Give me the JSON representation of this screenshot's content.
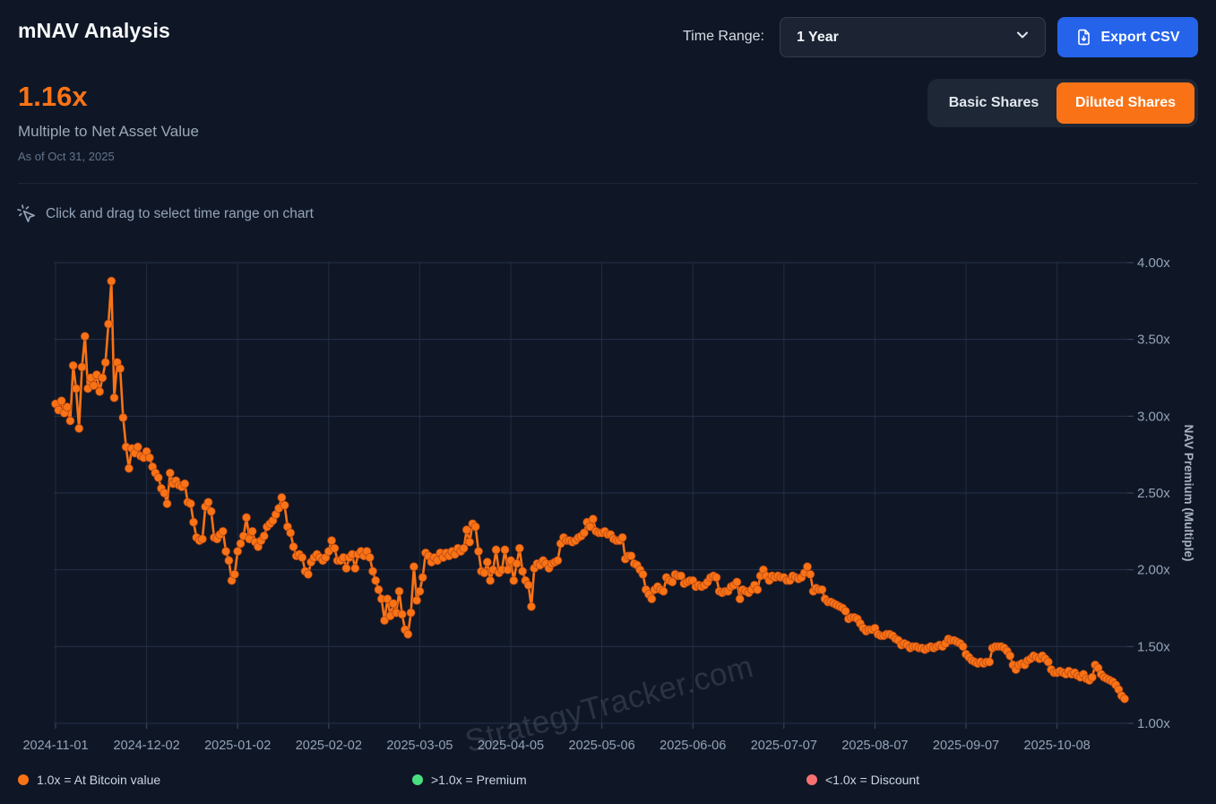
{
  "header": {
    "title": "mNAV Analysis",
    "time_range_label": "Time Range:",
    "time_range_value": "1 Year",
    "export_label": "Export CSV"
  },
  "metric": {
    "value": "1.16x",
    "label": "Multiple to Net Asset Value",
    "as_of": "As of Oct 31, 2025"
  },
  "share_toggle": {
    "basic_label": "Basic Shares",
    "diluted_label": "Diluted Shares",
    "active": "diluted"
  },
  "hint": "Click and drag to select time range on chart",
  "watermark": "StrategyTracker.com",
  "legend": [
    {
      "color": "#f97316",
      "label": "1.0x = At Bitcoin value"
    },
    {
      "color": "#4ade80",
      "label": ">1.0x = Premium"
    },
    {
      "color": "#f87171",
      "label": "<1.0x = Discount"
    }
  ],
  "colors": {
    "background": "#0f1726",
    "panel": "#1e2736",
    "border": "#323d4f",
    "accent_orange": "#f97316",
    "accent_blue": "#2563eb",
    "grid": "#26324a",
    "tick_text": "#94a3b8",
    "point_ring": "#9a3412"
  },
  "chart_data": {
    "type": "line",
    "title": "",
    "xlabel": "",
    "ylabel": "NAV Premium (Multiple)",
    "ylim": [
      1.0,
      4.0
    ],
    "grid": true,
    "legend_position": "bottom",
    "y_tick_values": [
      4.0,
      3.5,
      3.0,
      2.5,
      2.0,
      1.5,
      1.0
    ],
    "y_tick_labels": [
      "4.00x",
      "3.50x",
      "3.00x",
      "2.50x",
      "2.00x",
      "1.50x",
      "1.00x"
    ],
    "x_domain_days": [
      0,
      364
    ],
    "x_tick_days": [
      0,
      31,
      62,
      93,
      124,
      155,
      186,
      217,
      248,
      279,
      310,
      341
    ],
    "x_tick_labels": [
      "2024-11-01",
      "2024-12-02",
      "2025-01-02",
      "2025-02-02",
      "2025-03-05",
      "2025-04-05",
      "2025-05-06",
      "2025-06-06",
      "2025-07-07",
      "2025-08-07",
      "2025-09-07",
      "2025-10-08"
    ],
    "series_name": "NAV Premium (Diluted Shares)",
    "points_day_value": [
      [
        0,
        3.08
      ],
      [
        1,
        3.04
      ],
      [
        2,
        3.1
      ],
      [
        3,
        3.02
      ],
      [
        4,
        3.06
      ],
      [
        5,
        2.97
      ],
      [
        6,
        3.33
      ],
      [
        7,
        3.18
      ],
      [
        8,
        2.92
      ],
      [
        9,
        3.32
      ],
      [
        10,
        3.52
      ],
      [
        11,
        3.18
      ],
      [
        12,
        3.25
      ],
      [
        13,
        3.2
      ],
      [
        14,
        3.27
      ],
      [
        15,
        3.16
      ],
      [
        16,
        3.25
      ],
      [
        17,
        3.35
      ],
      [
        18,
        3.6
      ],
      [
        19,
        3.88
      ],
      [
        20,
        3.12
      ],
      [
        21,
        3.35
      ],
      [
        22,
        3.31
      ],
      [
        23,
        2.99
      ],
      [
        24,
        2.8
      ],
      [
        25,
        2.66
      ],
      [
        26,
        2.79
      ],
      [
        27,
        2.76
      ],
      [
        28,
        2.8
      ],
      [
        29,
        2.74
      ],
      [
        30,
        2.73
      ],
      [
        31,
        2.77
      ],
      [
        32,
        2.73
      ],
      [
        33,
        2.67
      ],
      [
        34,
        2.63
      ],
      [
        35,
        2.6
      ],
      [
        36,
        2.53
      ],
      [
        37,
        2.5
      ],
      [
        38,
        2.43
      ],
      [
        39,
        2.63
      ],
      [
        40,
        2.56
      ],
      [
        41,
        2.58
      ],
      [
        42,
        2.55
      ],
      [
        43,
        2.54
      ],
      [
        44,
        2.56
      ],
      [
        45,
        2.44
      ],
      [
        46,
        2.43
      ],
      [
        47,
        2.31
      ],
      [
        48,
        2.21
      ],
      [
        49,
        2.19
      ],
      [
        50,
        2.2
      ],
      [
        51,
        2.41
      ],
      [
        52,
        2.44
      ],
      [
        53,
        2.38
      ],
      [
        54,
        2.21
      ],
      [
        55,
        2.2
      ],
      [
        56,
        2.23
      ],
      [
        57,
        2.25
      ],
      [
        58,
        2.12
      ],
      [
        59,
        2.06
      ],
      [
        60,
        1.93
      ],
      [
        61,
        1.97
      ],
      [
        62,
        2.12
      ],
      [
        63,
        2.17
      ],
      [
        64,
        2.22
      ],
      [
        65,
        2.34
      ],
      [
        66,
        2.2
      ],
      [
        67,
        2.25
      ],
      [
        68,
        2.18
      ],
      [
        69,
        2.15
      ],
      [
        70,
        2.19
      ],
      [
        71,
        2.22
      ],
      [
        72,
        2.28
      ],
      [
        73,
        2.3
      ],
      [
        74,
        2.32
      ],
      [
        75,
        2.36
      ],
      [
        76,
        2.4
      ],
      [
        77,
        2.47
      ],
      [
        78,
        2.42
      ],
      [
        79,
        2.28
      ],
      [
        80,
        2.24
      ],
      [
        81,
        2.15
      ],
      [
        82,
        2.09
      ],
      [
        83,
        2.1
      ],
      [
        84,
        2.08
      ],
      [
        85,
        1.99
      ],
      [
        86,
        1.97
      ],
      [
        87,
        2.05
      ],
      [
        88,
        2.08
      ],
      [
        89,
        2.1
      ],
      [
        90,
        2.08
      ],
      [
        91,
        2.06
      ],
      [
        92,
        2.08
      ],
      [
        93,
        2.12
      ],
      [
        94,
        2.19
      ],
      [
        95,
        2.14
      ],
      [
        96,
        2.06
      ],
      [
        97,
        2.06
      ],
      [
        98,
        2.08
      ],
      [
        99,
        2.01
      ],
      [
        100,
        2.08
      ],
      [
        101,
        2.1
      ],
      [
        102,
        2.01
      ],
      [
        103,
        2.1
      ],
      [
        104,
        2.12
      ],
      [
        105,
        2.09
      ],
      [
        106,
        2.12
      ],
      [
        107,
        2.08
      ],
      [
        108,
        1.99
      ],
      [
        109,
        1.93
      ],
      [
        110,
        1.87
      ],
      [
        111,
        1.81
      ],
      [
        112,
        1.67
      ],
      [
        113,
        1.81
      ],
      [
        114,
        1.7
      ],
      [
        115,
        1.78
      ],
      [
        116,
        1.72
      ],
      [
        117,
        1.86
      ],
      [
        118,
        1.71
      ],
      [
        119,
        1.61
      ],
      [
        120,
        1.58
      ],
      [
        121,
        1.72
      ],
      [
        122,
        2.02
      ],
      [
        123,
        1.8
      ],
      [
        124,
        1.86
      ],
      [
        125,
        1.95
      ],
      [
        126,
        2.11
      ],
      [
        127,
        2.09
      ],
      [
        128,
        2.05
      ],
      [
        129,
        2.08
      ],
      [
        130,
        2.06
      ],
      [
        131,
        2.11
      ],
      [
        132,
        2.08
      ],
      [
        133,
        2.11
      ],
      [
        134,
        2.09
      ],
      [
        135,
        2.12
      ],
      [
        136,
        2.1
      ],
      [
        137,
        2.14
      ],
      [
        138,
        2.12
      ],
      [
        139,
        2.14
      ],
      [
        140,
        2.26
      ],
      [
        141,
        2.18
      ],
      [
        142,
        2.3
      ],
      [
        143,
        2.28
      ],
      [
        144,
        2.12
      ],
      [
        145,
        1.99
      ],
      [
        146,
        1.98
      ],
      [
        147,
        2.05
      ],
      [
        148,
        1.93
      ],
      [
        149,
        2.0
      ],
      [
        150,
        2.13
      ],
      [
        151,
        1.98
      ],
      [
        152,
        2.0
      ],
      [
        153,
        2.13
      ],
      [
        154,
        2.0
      ],
      [
        155,
        2.06
      ],
      [
        156,
        1.93
      ],
      [
        157,
        2.04
      ],
      [
        158,
        2.14
      ],
      [
        159,
        1.99
      ],
      [
        160,
        1.93
      ],
      [
        161,
        1.9
      ],
      [
        162,
        1.76
      ],
      [
        163,
        2.01
      ],
      [
        164,
        2.04
      ],
      [
        165,
        2.03
      ],
      [
        166,
        2.06
      ],
      [
        167,
        2.04
      ],
      [
        168,
        2.01
      ],
      [
        169,
        2.04
      ],
      [
        170,
        2.05
      ],
      [
        171,
        2.06
      ],
      [
        172,
        2.17
      ],
      [
        173,
        2.21
      ],
      [
        174,
        2.19
      ],
      [
        175,
        2.19
      ],
      [
        176,
        2.18
      ],
      [
        177,
        2.19
      ],
      [
        178,
        2.21
      ],
      [
        179,
        2.22
      ],
      [
        180,
        2.24
      ],
      [
        181,
        2.31
      ],
      [
        182,
        2.28
      ],
      [
        183,
        2.33
      ],
      [
        184,
        2.25
      ],
      [
        185,
        2.24
      ],
      [
        186,
        2.24
      ],
      [
        187,
        2.25
      ],
      [
        188,
        2.23
      ],
      [
        189,
        2.23
      ],
      [
        190,
        2.2
      ],
      [
        191,
        2.19
      ],
      [
        192,
        2.19
      ],
      [
        193,
        2.21
      ],
      [
        194,
        2.07
      ],
      [
        195,
        2.09
      ],
      [
        196,
        2.09
      ],
      [
        197,
        2.04
      ],
      [
        198,
        2.03
      ],
      [
        199,
        2.0
      ],
      [
        200,
        1.97
      ],
      [
        201,
        1.87
      ],
      [
        202,
        1.84
      ],
      [
        203,
        1.81
      ],
      [
        204,
        1.87
      ],
      [
        205,
        1.89
      ],
      [
        206,
        1.87
      ],
      [
        207,
        1.86
      ],
      [
        208,
        1.95
      ],
      [
        209,
        1.93
      ],
      [
        210,
        1.92
      ],
      [
        211,
        1.97
      ],
      [
        212,
        1.96
      ],
      [
        213,
        1.96
      ],
      [
        214,
        1.91
      ],
      [
        215,
        1.92
      ],
      [
        216,
        1.93
      ],
      [
        217,
        1.93
      ],
      [
        218,
        1.89
      ],
      [
        219,
        1.9
      ],
      [
        220,
        1.89
      ],
      [
        221,
        1.9
      ],
      [
        222,
        1.92
      ],
      [
        223,
        1.95
      ],
      [
        224,
        1.96
      ],
      [
        225,
        1.95
      ],
      [
        226,
        1.86
      ],
      [
        227,
        1.85
      ],
      [
        228,
        1.86
      ],
      [
        229,
        1.86
      ],
      [
        230,
        1.89
      ],
      [
        231,
        1.9
      ],
      [
        232,
        1.92
      ],
      [
        233,
        1.81
      ],
      [
        234,
        1.87
      ],
      [
        235,
        1.86
      ],
      [
        236,
        1.85
      ],
      [
        237,
        1.87
      ],
      [
        238,
        1.9
      ],
      [
        239,
        1.87
      ],
      [
        240,
        1.96
      ],
      [
        241,
        2.0
      ],
      [
        242,
        1.96
      ],
      [
        243,
        1.93
      ],
      [
        244,
        1.96
      ],
      [
        245,
        1.95
      ],
      [
        246,
        1.96
      ],
      [
        247,
        1.95
      ],
      [
        248,
        1.95
      ],
      [
        249,
        1.93
      ],
      [
        250,
        1.93
      ],
      [
        251,
        1.96
      ],
      [
        252,
        1.95
      ],
      [
        253,
        1.94
      ],
      [
        254,
        1.95
      ],
      [
        255,
        1.98
      ],
      [
        256,
        2.02
      ],
      [
        257,
        1.97
      ],
      [
        258,
        1.86
      ],
      [
        259,
        1.88
      ],
      [
        260,
        1.87
      ],
      [
        261,
        1.87
      ],
      [
        262,
        1.81
      ],
      [
        263,
        1.79
      ],
      [
        264,
        1.79
      ],
      [
        265,
        1.78
      ],
      [
        266,
        1.77
      ],
      [
        267,
        1.76
      ],
      [
        268,
        1.75
      ],
      [
        269,
        1.73
      ],
      [
        270,
        1.68
      ],
      [
        271,
        1.69
      ],
      [
        272,
        1.69
      ],
      [
        273,
        1.68
      ],
      [
        274,
        1.65
      ],
      [
        275,
        1.62
      ],
      [
        276,
        1.6
      ],
      [
        277,
        1.61
      ],
      [
        278,
        1.61
      ],
      [
        279,
        1.62
      ],
      [
        280,
        1.58
      ],
      [
        281,
        1.57
      ],
      [
        282,
        1.57
      ],
      [
        283,
        1.58
      ],
      [
        284,
        1.58
      ],
      [
        285,
        1.57
      ],
      [
        286,
        1.55
      ],
      [
        287,
        1.54
      ],
      [
        288,
        1.51
      ],
      [
        289,
        1.52
      ],
      [
        290,
        1.51
      ],
      [
        291,
        1.49
      ],
      [
        292,
        1.5
      ],
      [
        293,
        1.5
      ],
      [
        294,
        1.49
      ],
      [
        295,
        1.49
      ],
      [
        296,
        1.48
      ],
      [
        297,
        1.49
      ],
      [
        298,
        1.5
      ],
      [
        299,
        1.49
      ],
      [
        300,
        1.5
      ],
      [
        301,
        1.51
      ],
      [
        302,
        1.5
      ],
      [
        303,
        1.52
      ],
      [
        304,
        1.55
      ],
      [
        305,
        1.54
      ],
      [
        306,
        1.54
      ],
      [
        307,
        1.53
      ],
      [
        308,
        1.52
      ],
      [
        309,
        1.5
      ],
      [
        310,
        1.45
      ],
      [
        311,
        1.43
      ],
      [
        312,
        1.41
      ],
      [
        313,
        1.4
      ],
      [
        314,
        1.39
      ],
      [
        315,
        1.4
      ],
      [
        316,
        1.39
      ],
      [
        317,
        1.4
      ],
      [
        318,
        1.4
      ],
      [
        319,
        1.49
      ],
      [
        320,
        1.5
      ],
      [
        321,
        1.5
      ],
      [
        322,
        1.5
      ],
      [
        323,
        1.49
      ],
      [
        324,
        1.47
      ],
      [
        325,
        1.44
      ],
      [
        326,
        1.38
      ],
      [
        327,
        1.35
      ],
      [
        328,
        1.38
      ],
      [
        329,
        1.39
      ],
      [
        330,
        1.38
      ],
      [
        331,
        1.41
      ],
      [
        332,
        1.42
      ],
      [
        333,
        1.44
      ],
      [
        334,
        1.43
      ],
      [
        335,
        1.42
      ],
      [
        336,
        1.44
      ],
      [
        337,
        1.42
      ],
      [
        338,
        1.4
      ],
      [
        339,
        1.35
      ],
      [
        340,
        1.33
      ],
      [
        341,
        1.33
      ],
      [
        342,
        1.34
      ],
      [
        343,
        1.33
      ],
      [
        344,
        1.32
      ],
      [
        345,
        1.34
      ],
      [
        346,
        1.32
      ],
      [
        347,
        1.33
      ],
      [
        348,
        1.31
      ],
      [
        349,
        1.3
      ],
      [
        350,
        1.32
      ],
      [
        351,
        1.29
      ],
      [
        352,
        1.28
      ],
      [
        353,
        1.3
      ],
      [
        354,
        1.38
      ],
      [
        355,
        1.36
      ],
      [
        356,
        1.32
      ],
      [
        357,
        1.3
      ],
      [
        358,
        1.29
      ],
      [
        359,
        1.28
      ],
      [
        360,
        1.27
      ],
      [
        361,
        1.25
      ],
      [
        362,
        1.22
      ],
      [
        363,
        1.18
      ],
      [
        364,
        1.16
      ]
    ]
  }
}
